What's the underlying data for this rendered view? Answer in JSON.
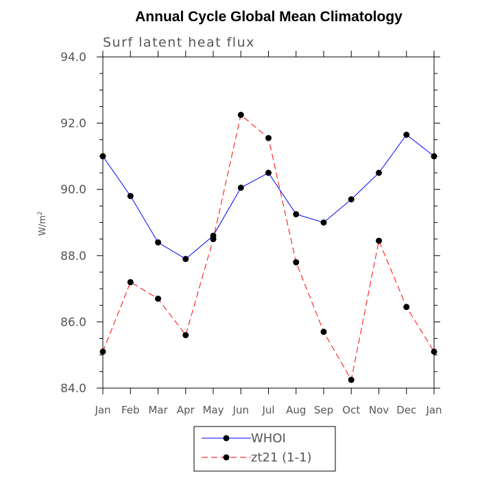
{
  "chart_data": {
    "type": "line",
    "title": "Annual Cycle Global Mean Climatology",
    "subtitle": "Surf latent heat flux",
    "ylabel": "W/m",
    "ylabel_superscript": "2",
    "xlabel": "",
    "categories": [
      "Jan",
      "Feb",
      "Mar",
      "Apr",
      "May",
      "Jun",
      "Jul",
      "Aug",
      "Sep",
      "Oct",
      "Nov",
      "Dec",
      "Jan"
    ],
    "ylim": [
      84.0,
      94.0
    ],
    "yticks": [
      84.0,
      86.0,
      88.0,
      90.0,
      92.0,
      94.0
    ],
    "ytick_labels": [
      "84.0",
      "86.0",
      "88.0",
      "90.0",
      "92.0",
      "94.0"
    ],
    "yminor_step": 0.5,
    "series": [
      {
        "name": "WHOI",
        "color": "#0000ff",
        "dash": "solid",
        "values": [
          91.0,
          89.8,
          88.4,
          87.9,
          88.6,
          90.05,
          90.5,
          89.25,
          89.0,
          89.7,
          90.5,
          91.65,
          91.0
        ]
      },
      {
        "name": "zt21 (1-1)",
        "color": "#ff0000",
        "dash": "dashed",
        "values": [
          85.1,
          87.2,
          86.7,
          85.6,
          88.5,
          92.25,
          91.55,
          87.8,
          85.7,
          84.25,
          88.45,
          86.45,
          85.1
        ]
      }
    ],
    "legend_position": "bottom-center",
    "grid": false
  }
}
